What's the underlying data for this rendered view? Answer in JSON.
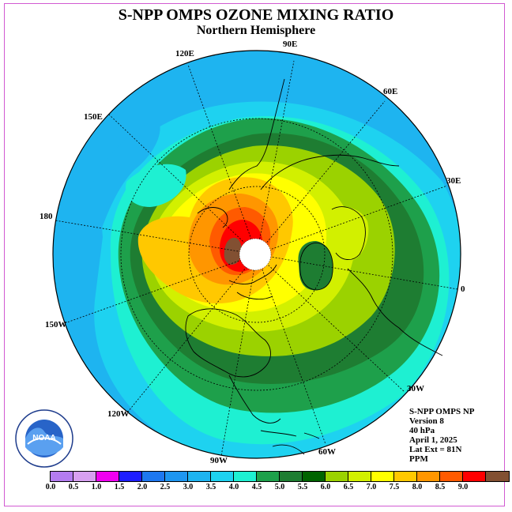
{
  "title": "S-NPP OMPS OZONE MIXING RATIO",
  "subtitle": "Northern Hemisphere",
  "longitude_labels": [
    "90E",
    "60E",
    "30E",
    "0",
    "30W",
    "60W",
    "90W",
    "120W",
    "150W",
    "180",
    "150E",
    "120E"
  ],
  "info": {
    "product": "S-NPP OMPS NP",
    "version": "Version 8",
    "level": "40 hPa",
    "date": "April 1, 2025",
    "lat_ext": "Lat Ext = 81N",
    "units": "PPM"
  },
  "logo_text": "NOAA",
  "colorbar": {
    "ticks": [
      "0.0",
      "0.5",
      "1.0",
      "1.5",
      "2.0",
      "2.5",
      "3.0",
      "3.5",
      "4.0",
      "4.5",
      "5.0",
      "5.5",
      "6.0",
      "6.5",
      "7.0",
      "7.5",
      "8.0",
      "8.5",
      "9.0"
    ],
    "colors": [
      "#b47cf0",
      "#d7a0f0",
      "#f000f0",
      "#1e1eff",
      "#1e78f0",
      "#1e96f0",
      "#1eb4f0",
      "#1ed2f0",
      "#1ef0d2",
      "#1ea04b",
      "#1e7d32",
      "#006400",
      "#9bd200",
      "#d2f000",
      "#ffff00",
      "#ffc800",
      "#ff9600",
      "#ff5a00",
      "#ff0000",
      "#825032"
    ]
  },
  "map": {
    "projection": "north polar stereographic",
    "level_colors": {
      "band_3_0": "#1eb4f0",
      "band_3_5": "#1ed2f0",
      "band_4_0": "#1ef0d2",
      "band_4_5": "#1ea04b",
      "band_5_0": "#1e7d32",
      "band_5_5": "#9bd200",
      "band_6_0": "#d2f000",
      "band_6_5": "#ffff00",
      "band_7_0": "#ffc800",
      "band_7_5": "#ff9600",
      "band_8_0": "#ff5a00",
      "band_8_5": "#ff0000",
      "band_9_0": "#825032"
    }
  }
}
